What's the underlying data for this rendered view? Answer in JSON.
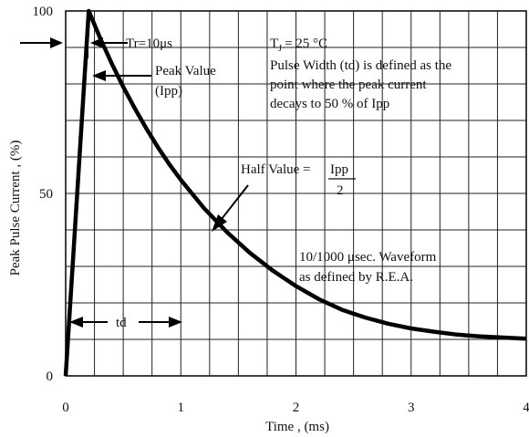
{
  "chart_data": {
    "type": "line",
    "title": "",
    "xlabel": "Time , (ms)",
    "ylabel": "Peak Pulse Current , (%)",
    "xlim": [
      0,
      4
    ],
    "ylim": [
      0,
      100
    ],
    "x_ticks": [
      "0",
      "1",
      "2",
      "3",
      "4"
    ],
    "y_ticks": [
      "0",
      "50",
      "100"
    ],
    "grid": true,
    "series": [
      {
        "x": [
          0,
          0.2,
          0.3,
          0.4,
          0.5,
          0.6,
          0.7,
          0.8,
          0.9,
          1.0,
          1.2,
          1.4,
          1.6,
          1.8,
          2.0,
          2.2,
          2.4,
          2.6,
          2.8,
          3.0,
          3.2,
          3.4,
          3.6,
          3.8,
          4.0
        ],
        "values": [
          0,
          100,
          92.5,
          85.6,
          79.2,
          73.3,
          67.8,
          62.7,
          58.0,
          53.7,
          46.0,
          39.4,
          33.7,
          28.8,
          24.6,
          21.0,
          18.1,
          16.0,
          14.3,
          13.0,
          12.1,
          11.3,
          10.8,
          10.5,
          10.2
        ]
      }
    ],
    "annotations": {
      "tr": "Tr=10μs",
      "peak_value": "Peak Value",
      "ipp": "(Ipp)",
      "tj": "T",
      "tj_sub": "J",
      "tj_value": "= 25 °C",
      "pulse_width_lines": [
        "Pulse Width (td) is defined as the",
        "point where the peak current",
        "decays to 50 % of Ipp"
      ],
      "half_value": "Half Value =",
      "half_num": "Ipp",
      "half_den": "2",
      "waveform_lines": [
        "10/1000 μsec. Waveform",
        "as defined by R.E.A."
      ],
      "td": "td"
    }
  }
}
